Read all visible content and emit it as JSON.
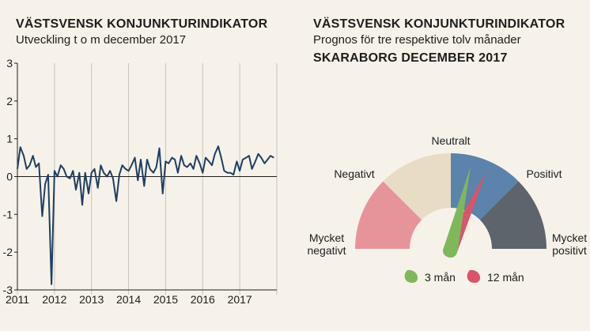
{
  "left": {
    "title": "VÄSTSVENSK KONJUNKTURINDIKATOR",
    "subtitle": "Utveckling t o m december 2017"
  },
  "right": {
    "title": "VÄSTSVENSK KONJUNKTURINDIKATOR",
    "subtitle": "Prognos för tre respektive tolv månader",
    "region": "SKARABORG DECEMBER 2017"
  },
  "chart_data": [
    {
      "type": "line",
      "title": "VÄSTSVENSK KONJUNKTURINDIKATOR",
      "subtitle": "Utveckling t o m december 2017",
      "ylim": [
        -3,
        3
      ],
      "y_ticks": [
        "3",
        "2",
        "1",
        "0",
        "-1",
        "-2",
        "-3"
      ],
      "x_ticks": [
        "2011",
        "2012",
        "2013",
        "2014",
        "2015",
        "2016",
        "2017"
      ],
      "xlim": [
        2011.0,
        2018.0
      ],
      "grid": "vertical",
      "series_color": "#1f3e60",
      "series": [
        {
          "x": [
            2011.0,
            2011.08,
            2011.17,
            2011.25,
            2011.33,
            2011.42,
            2011.5,
            2011.58,
            2011.67,
            2011.75,
            2011.83,
            2011.92,
            2012.0,
            2012.08,
            2012.17,
            2012.25,
            2012.33,
            2012.42,
            2012.5,
            2012.58,
            2012.67,
            2012.75,
            2012.83,
            2012.92,
            2013.0,
            2013.08,
            2013.17,
            2013.25,
            2013.33,
            2013.42,
            2013.5,
            2013.58,
            2013.67,
            2013.75,
            2013.83,
            2013.92,
            2014.0,
            2014.08,
            2014.17,
            2014.25,
            2014.33,
            2014.42,
            2014.5,
            2014.58,
            2014.67,
            2014.75,
            2014.83,
            2014.92,
            2015.0,
            2015.08,
            2015.17,
            2015.25,
            2015.33,
            2015.42,
            2015.5,
            2015.58,
            2015.67,
            2015.75,
            2015.83,
            2015.92,
            2016.0,
            2016.08,
            2016.17,
            2016.25,
            2016.33,
            2016.42,
            2016.5,
            2016.58,
            2016.67,
            2016.75,
            2016.83,
            2016.92,
            2017.0,
            2017.08,
            2017.17,
            2017.25,
            2017.33,
            2017.42,
            2017.5,
            2017.58,
            2017.67,
            2017.75,
            2017.83,
            2017.92
          ],
          "y": [
            0.2,
            0.78,
            0.55,
            0.2,
            0.3,
            0.55,
            0.25,
            0.35,
            -1.05,
            -0.2,
            0.05,
            -2.85,
            0.15,
            0.0,
            0.3,
            0.2,
            0.0,
            -0.05,
            0.15,
            -0.35,
            0.1,
            -0.75,
            0.1,
            -0.45,
            0.1,
            0.2,
            -0.3,
            0.3,
            0.1,
            0.0,
            0.15,
            -0.05,
            -0.65,
            0.05,
            0.3,
            0.2,
            0.15,
            0.3,
            0.5,
            -0.1,
            0.45,
            -0.25,
            0.45,
            0.2,
            0.1,
            0.25,
            0.75,
            -0.45,
            0.4,
            0.35,
            0.5,
            0.45,
            0.1,
            0.55,
            0.3,
            0.25,
            0.35,
            0.2,
            0.55,
            0.35,
            0.1,
            0.5,
            0.4,
            0.3,
            0.6,
            0.8,
            0.5,
            0.15,
            0.1,
            0.1,
            0.05,
            0.4,
            0.15,
            0.45,
            0.5,
            0.55,
            0.2,
            0.4,
            0.6,
            0.5,
            0.35,
            0.45,
            0.55,
            0.5
          ]
        }
      ]
    },
    {
      "type": "gauge",
      "title": "VÄSTSVENSK KONJUNKTURINDIKATOR",
      "subtitle": "Prognos för tre respektive tolv månader",
      "region": "SKARABORG DECEMBER 2017",
      "range": [
        -2,
        2
      ],
      "segments": [
        {
          "label": "Mycket negativt",
          "from": -2,
          "to": -1,
          "color": "#e7939a"
        },
        {
          "label": "Negativt",
          "from": -1,
          "to": 0,
          "color": "#e8dcc5"
        },
        {
          "label": "Neutralt",
          "from": 0,
          "to": 0,
          "color": "#1d1d1b"
        },
        {
          "label": "Positivt",
          "from": 0,
          "to": 1,
          "color": "#5b83ab"
        },
        {
          "label": "Mycket positivt",
          "from": 1,
          "to": 2,
          "color": "#5e646b"
        }
      ],
      "needles": [
        {
          "name": "3 mån",
          "value": 0.3,
          "color": "#7fb85a"
        },
        {
          "name": "12 mån",
          "value": 0.55,
          "color": "#d9546a"
        }
      ]
    }
  ]
}
